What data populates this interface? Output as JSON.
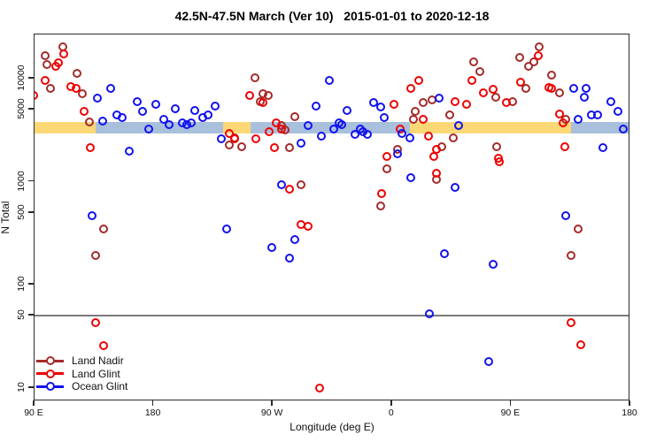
{
  "title": "42.5N-47.5N March (Ver 10)   2015-01-01 to 2020-12-18",
  "chart_data": {
    "type": "scatter",
    "title": "42.5N-47.5N March (Ver 10)   2015-01-01 to 2020-12-18",
    "xlabel": "Longitude (deg E)",
    "ylabel": "N Total",
    "grid": false,
    "legend_position": "bottom-left",
    "x_axis": {
      "min": 90,
      "max": 540,
      "ticks": [
        {
          "value": 90,
          "label": "90 E"
        },
        {
          "value": 180,
          "label": "180"
        },
        {
          "value": 270,
          "label": "90 W"
        },
        {
          "value": 360,
          "label": "0"
        },
        {
          "value": 450,
          "label": "90 E"
        },
        {
          "value": 540,
          "label": "180"
        }
      ]
    },
    "y_axis": {
      "scale": "log",
      "min": 7.4,
      "max": 26900,
      "ticks": [
        {
          "value": 10000,
          "label": "10000"
        },
        {
          "value": 5000,
          "label": "5000"
        },
        {
          "value": 1000,
          "label": "1000"
        },
        {
          "value": 500,
          "label": "500"
        },
        {
          "value": 100,
          "label": "100"
        },
        {
          "value": 50,
          "label": "50"
        },
        {
          "value": 10,
          "label": "10"
        }
      ]
    },
    "reference_line": {
      "y": 50,
      "color": "#7a7a7a"
    },
    "bands": {
      "n_top": 3700,
      "n_bottom": 2900,
      "land_color": "#fbd776",
      "ocean_color": "#a8c0dc",
      "segments": [
        {
          "type": "land",
          "from": 90,
          "to": 137
        },
        {
          "type": "ocean",
          "from": 137,
          "to": 233
        },
        {
          "type": "land",
          "from": 233,
          "to": 254
        },
        {
          "type": "ocean",
          "from": 254,
          "to": 374
        },
        {
          "type": "land",
          "from": 374,
          "to": 496
        },
        {
          "type": "ocean",
          "from": 496,
          "to": 540
        }
      ]
    },
    "series": [
      {
        "name": "Land Nadir",
        "color": "#a52a2a",
        "points": [
          [
            112,
            20000
          ],
          [
            99,
            16400
          ],
          [
            100,
            13500
          ],
          [
            123,
            11000
          ],
          [
            103,
            7900
          ],
          [
            127,
            7000
          ],
          [
            132,
            3700
          ],
          [
            143,
            340
          ],
          [
            137,
            190
          ],
          [
            238,
            2240
          ],
          [
            242,
            2630
          ],
          [
            247,
            2160
          ],
          [
            257,
            10000
          ],
          [
            263,
            7000
          ],
          [
            267,
            6700
          ],
          [
            261,
            5830
          ],
          [
            287,
            4240
          ],
          [
            277,
            3480
          ],
          [
            280,
            3150
          ],
          [
            283,
            2110
          ],
          [
            292,
            916
          ],
          [
            357,
            1310
          ],
          [
            352,
            569
          ],
          [
            378,
            4690
          ],
          [
            377,
            3920
          ],
          [
            365,
            2030
          ],
          [
            384,
            5710
          ],
          [
            391,
            6130
          ],
          [
            404,
            4330
          ],
          [
            407,
            2630
          ],
          [
            398,
            2160
          ],
          [
            422,
            14300
          ],
          [
            427,
            11500
          ],
          [
            439,
            6440
          ],
          [
            452,
            5830
          ],
          [
            457,
            15800
          ],
          [
            464,
            12900
          ],
          [
            468,
            14300
          ],
          [
            472,
            20000
          ],
          [
            481,
            10600
          ],
          [
            462,
            7870
          ],
          [
            487,
            7120
          ],
          [
            440,
            2160
          ],
          [
            394,
            1030
          ],
          [
            501,
            339
          ],
          [
            496,
            190
          ],
          [
            492,
            3920
          ]
        ]
      },
      {
        "name": "Land Glint",
        "color": "#ee0000",
        "points": [
          [
            113,
            17000
          ],
          [
            109,
            14000
          ],
          [
            107,
            12900
          ],
          [
            118,
            8200
          ],
          [
            122,
            7870
          ],
          [
            99,
            9410
          ],
          [
            90,
            6700
          ],
          [
            128,
            4690
          ],
          [
            133,
            2110
          ],
          [
            137,
            42
          ],
          [
            143,
            25
          ],
          [
            238,
            2910
          ],
          [
            242,
            2580
          ],
          [
            258,
            2580
          ],
          [
            268,
            3030
          ],
          [
            273,
            3690
          ],
          [
            277,
            3210
          ],
          [
            272,
            2110
          ],
          [
            253,
            6700
          ],
          [
            263,
            5710
          ],
          [
            283,
            830
          ],
          [
            292,
            374
          ],
          [
            297,
            360
          ],
          [
            306,
            9.8
          ],
          [
            353,
            751
          ],
          [
            357,
            1730
          ],
          [
            362,
            5500
          ],
          [
            367,
            3210
          ],
          [
            375,
            7870
          ],
          [
            381,
            9410
          ],
          [
            384,
            3920
          ],
          [
            388,
            2740
          ],
          [
            394,
            2030
          ],
          [
            392,
            1730
          ],
          [
            394,
            1190
          ],
          [
            408,
            5830
          ],
          [
            417,
            5500
          ],
          [
            421,
            9410
          ],
          [
            430,
            7120
          ],
          [
            437,
            7700
          ],
          [
            442,
            1540
          ],
          [
            447,
            5710
          ],
          [
            458,
            9040
          ],
          [
            471,
            16400
          ],
          [
            479,
            8100
          ],
          [
            481,
            7870
          ],
          [
            487,
            4500
          ],
          [
            490,
            3690
          ],
          [
            491,
            2160
          ],
          [
            496,
            42
          ],
          [
            503,
            25.5
          ],
          [
            441,
            1665
          ]
        ]
      },
      {
        "name": "Ocean Glint",
        "color": "#1212ee",
        "points": [
          [
            148,
            7870
          ],
          [
            138,
            6310
          ],
          [
            168,
            5830
          ],
          [
            182,
            5500
          ],
          [
            172,
            4690
          ],
          [
            197,
            4980
          ],
          [
            212,
            4780
          ],
          [
            227,
            5280
          ],
          [
            218,
            4080
          ],
          [
            222,
            4330
          ],
          [
            153,
            4330
          ],
          [
            157,
            4080
          ],
          [
            142,
            3840
          ],
          [
            177,
            3210
          ],
          [
            188,
            3920
          ],
          [
            192,
            3550
          ],
          [
            202,
            3690
          ],
          [
            206,
            3550
          ],
          [
            209,
            3690
          ],
          [
            232,
            2580
          ],
          [
            162,
            1950
          ],
          [
            134,
            457
          ],
          [
            236,
            339
          ],
          [
            277,
            916
          ],
          [
            270,
            227
          ],
          [
            283,
            179
          ],
          [
            287,
            267
          ],
          [
            292,
            2335
          ],
          [
            297,
            3480
          ],
          [
            307,
            2740
          ],
          [
            317,
            3210
          ],
          [
            321,
            3690
          ],
          [
            323,
            3550
          ],
          [
            333,
            2850
          ],
          [
            339,
            3030
          ],
          [
            342,
            2850
          ],
          [
            347,
            5710
          ],
          [
            352,
            5180
          ],
          [
            355,
            4080
          ],
          [
            313,
            9410
          ],
          [
            303,
            5280
          ],
          [
            327,
            4780
          ],
          [
            368,
            2910
          ],
          [
            374,
            2630
          ],
          [
            365,
            1840
          ],
          [
            375,
            1074
          ],
          [
            396,
            6310
          ],
          [
            408,
            863
          ],
          [
            411,
            3480
          ],
          [
            400,
            198
          ],
          [
            437,
            156
          ],
          [
            492,
            457
          ],
          [
            501,
            3920
          ],
          [
            498,
            7870
          ],
          [
            506,
            6440
          ],
          [
            507,
            7870
          ],
          [
            511,
            4330
          ],
          [
            516,
            4330
          ],
          [
            526,
            5830
          ],
          [
            531,
            4690
          ],
          [
            535,
            3210
          ],
          [
            520,
            2110
          ],
          [
            389,
            51
          ],
          [
            434,
            17.8
          ],
          [
            337,
            3210
          ]
        ]
      }
    ]
  }
}
